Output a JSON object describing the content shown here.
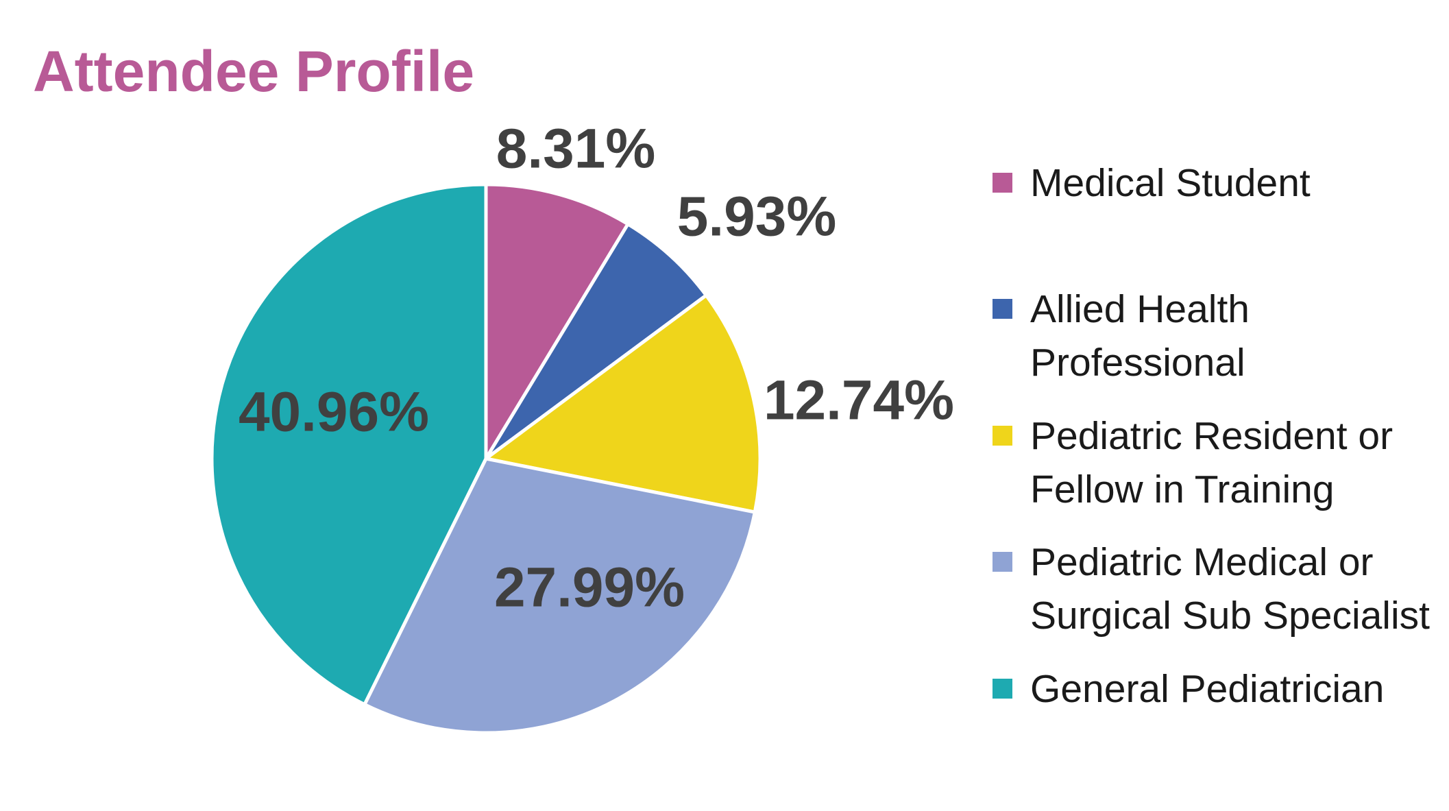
{
  "chart_data": {
    "type": "pie",
    "title": "Attendee Profile",
    "categories": [
      "Medical Student",
      "Allied Health\nProfessional",
      "Pediatric Resident or\nFellow in Training",
      "Pediatric Medical or\nSurgical Sub Specialist",
      "General Pediatrician"
    ],
    "values": [
      8.31,
      5.93,
      12.74,
      27.99,
      40.96
    ],
    "data_labels": [
      "8.31%",
      "5.93%",
      "12.74%",
      "27.99%",
      "40.96%"
    ],
    "colors": [
      "#B85A96",
      "#3D65AD",
      "#EFD51B",
      "#8FA3D4",
      "#1EAAB1"
    ],
    "start_angle_deg": 0,
    "direction": "clockwise",
    "legend_position": "right"
  },
  "style": {
    "title_color": "#B85A96",
    "label_color": "#404040",
    "slice_border_color": "#FFFFFF"
  }
}
